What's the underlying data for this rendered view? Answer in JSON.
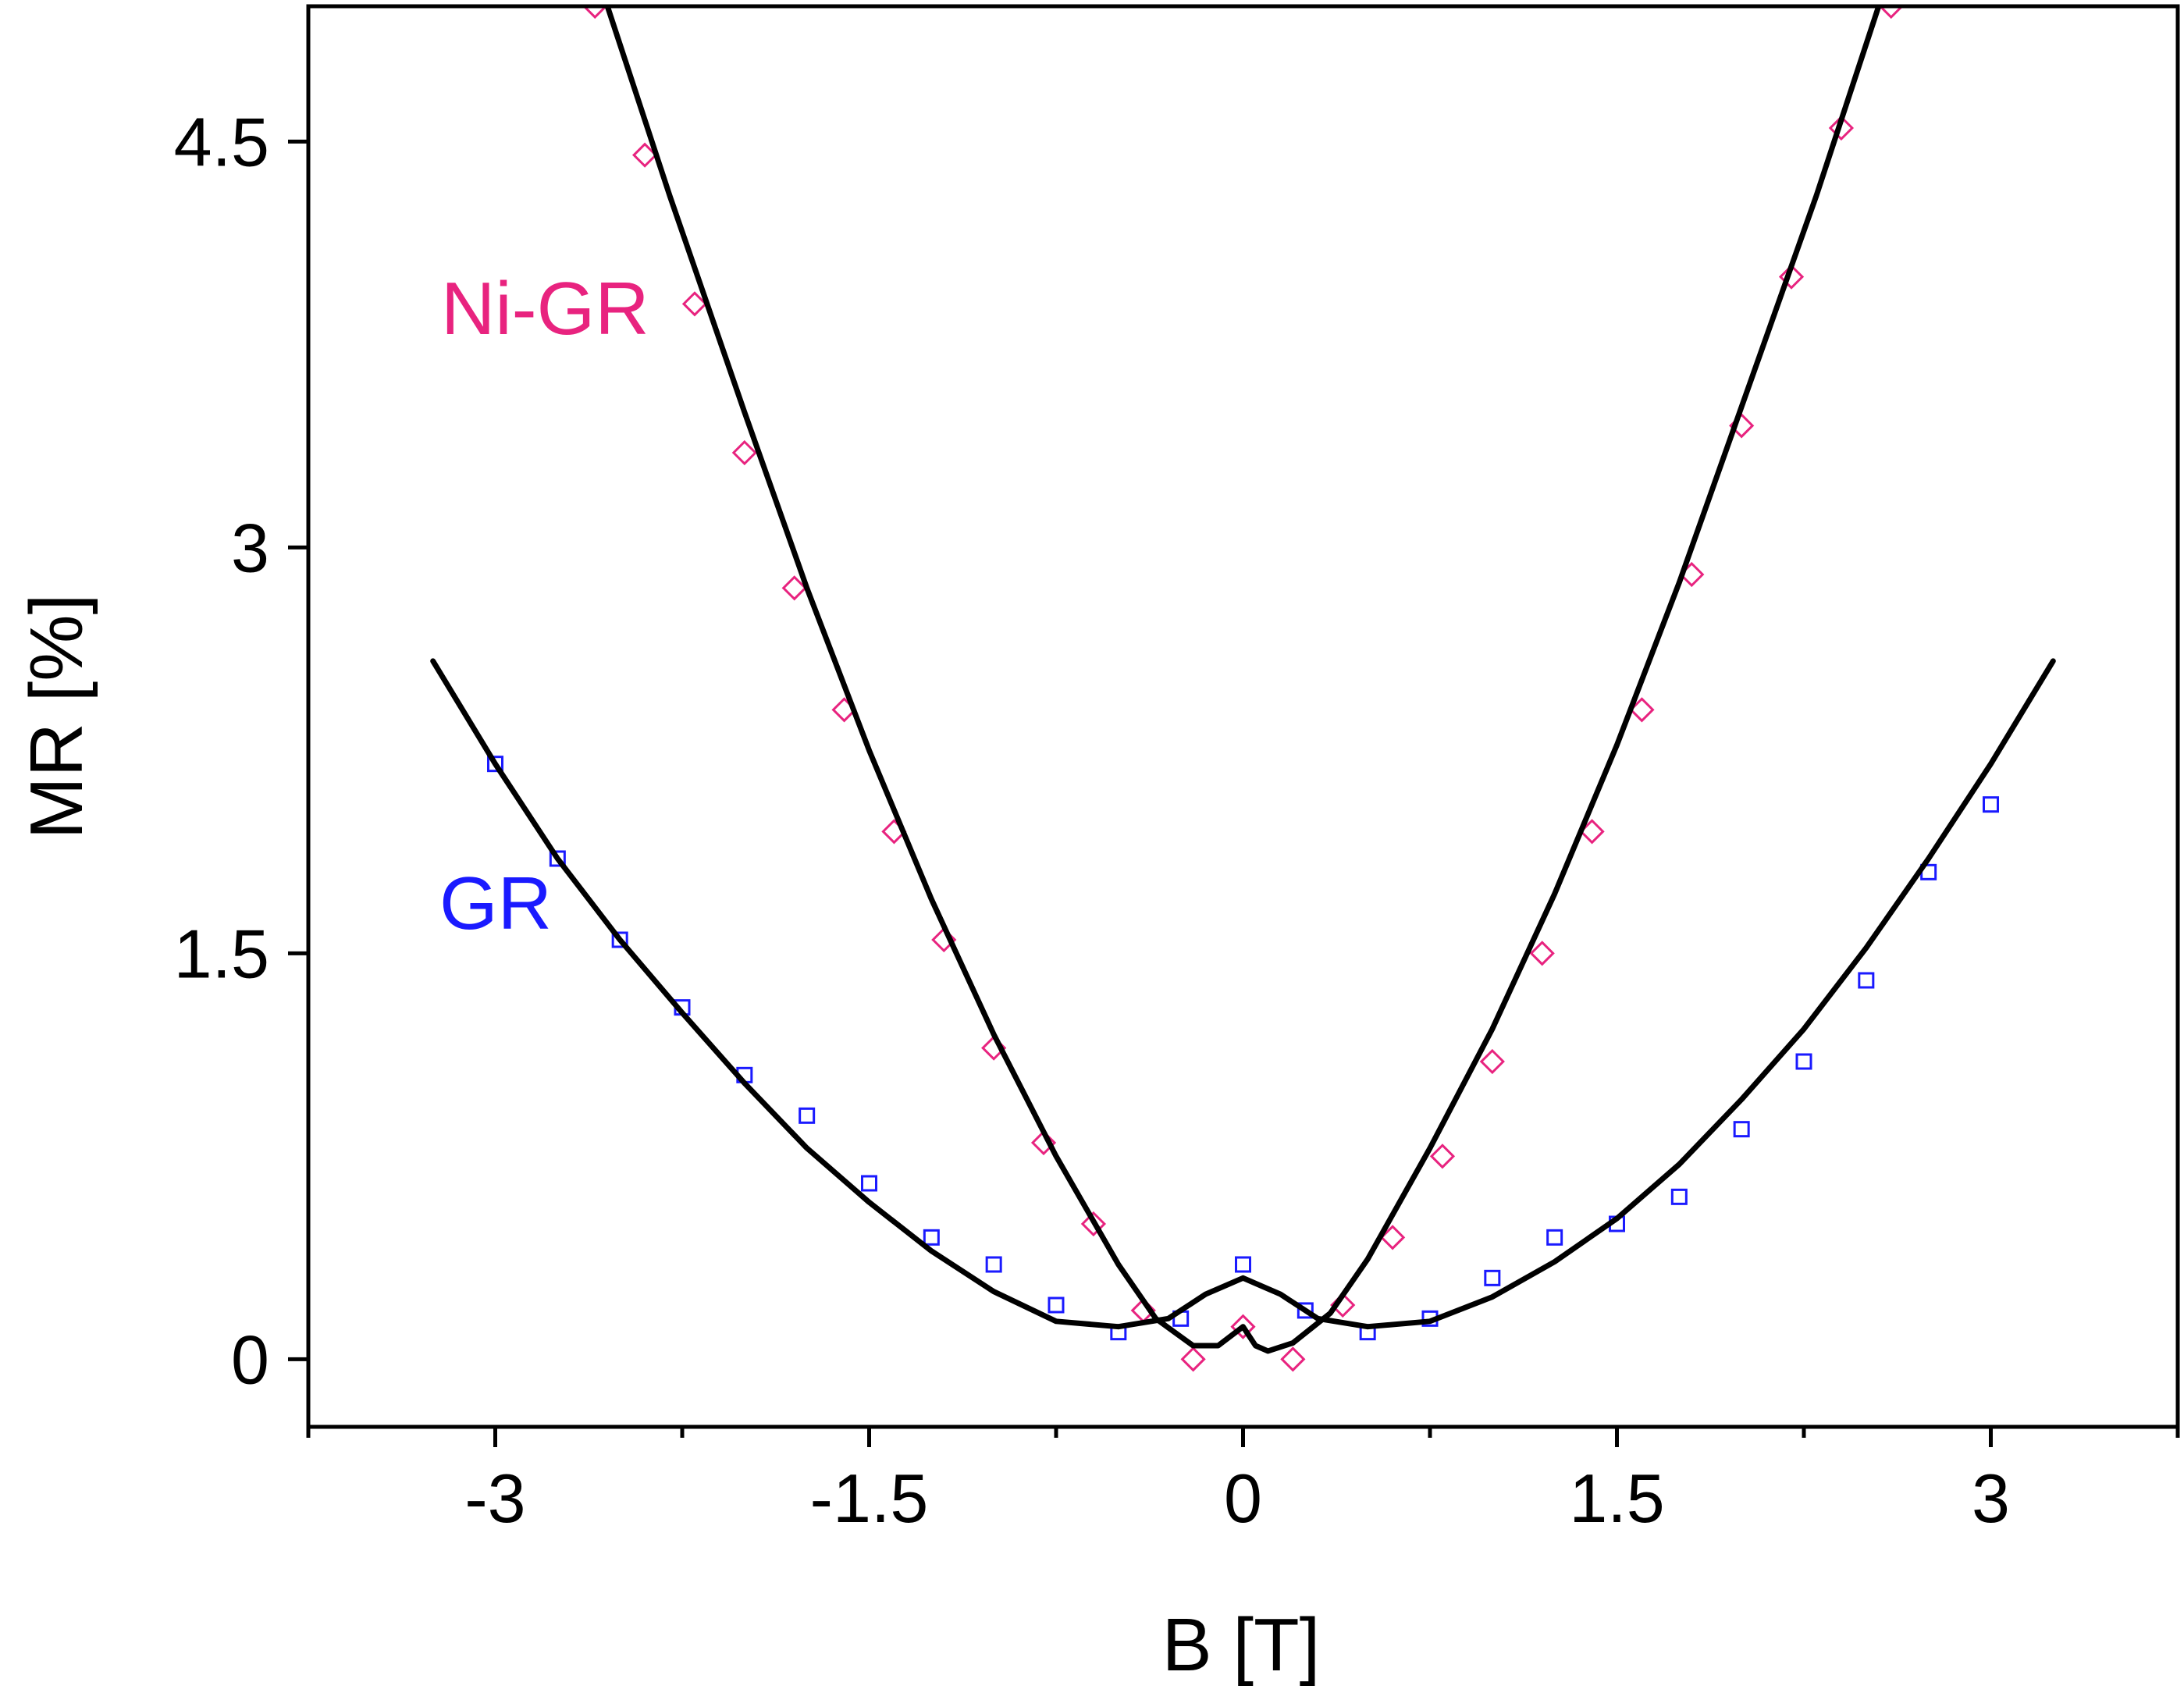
{
  "chart_data": {
    "type": "scatter",
    "xlabel": "B [T]",
    "ylabel": "MR [%]",
    "xlim": [
      -3.75,
      3.75
    ],
    "ylim": [
      -0.25,
      5.0
    ],
    "x_ticks": [
      "-3",
      "-1.5",
      "0",
      "1.5",
      "3"
    ],
    "x_tick_values": [
      -3,
      -1.5,
      0,
      1.5,
      3
    ],
    "y_ticks": [
      "0",
      "1.5",
      "3",
      "4.5"
    ],
    "y_tick_values": [
      0,
      1.5,
      3,
      4.5
    ],
    "grid": false,
    "series": [
      {
        "name": "Ni-GR",
        "marker": "diamond",
        "color": "#e8237f",
        "x": [
          -2.6,
          -2.4,
          -2.2,
          -2.0,
          -1.8,
          -1.6,
          -1.4,
          -1.2,
          -1.0,
          -0.8,
          -0.6,
          -0.4,
          -0.2,
          0.0,
          0.2,
          0.4,
          0.6,
          0.8,
          1.0,
          1.2,
          1.4,
          1.6,
          1.8,
          2.0,
          2.2,
          2.4,
          2.6
        ],
        "y": [
          5.0,
          4.45,
          3.9,
          3.35,
          2.85,
          2.4,
          1.95,
          1.55,
          1.15,
          0.8,
          0.5,
          0.18,
          0.0,
          0.12,
          0.0,
          0.2,
          0.45,
          0.75,
          1.1,
          1.5,
          1.95,
          2.4,
          2.9,
          3.45,
          4.0,
          4.55,
          5.0
        ]
      },
      {
        "name": "GR",
        "marker": "square",
        "color": "#1a1aff",
        "x": [
          -3.0,
          -2.75,
          -2.5,
          -2.25,
          -2.0,
          -1.75,
          -1.5,
          -1.25,
          -1.0,
          -0.75,
          -0.5,
          -0.25,
          0.0,
          0.25,
          0.5,
          0.75,
          1.0,
          1.25,
          1.5,
          1.75,
          2.0,
          2.25,
          2.5,
          2.75,
          3.0
        ],
        "y": [
          2.2,
          1.85,
          1.55,
          1.3,
          1.05,
          0.9,
          0.65,
          0.45,
          0.35,
          0.2,
          0.1,
          0.15,
          0.35,
          0.18,
          0.1,
          0.15,
          0.3,
          0.45,
          0.5,
          0.6,
          0.85,
          1.1,
          1.4,
          1.8,
          2.05
        ]
      }
    ],
    "fits": [
      {
        "for": "Ni-GR",
        "color": "#000000",
        "x": [
          -2.55,
          -2.3,
          -2.0,
          -1.75,
          -1.5,
          -1.25,
          -1.0,
          -0.75,
          -0.5,
          -0.35,
          -0.2,
          -0.1,
          0.0,
          0.05,
          0.1,
          0.2,
          0.35,
          0.5,
          0.75,
          1.0,
          1.25,
          1.5,
          1.75,
          2.0,
          2.3,
          2.55
        ],
        "y": [
          5.0,
          4.3,
          3.5,
          2.85,
          2.25,
          1.7,
          1.2,
          0.75,
          0.35,
          0.15,
          0.05,
          0.05,
          0.12,
          0.05,
          0.03,
          0.06,
          0.17,
          0.37,
          0.78,
          1.22,
          1.72,
          2.27,
          2.87,
          3.52,
          4.3,
          5.0
        ]
      },
      {
        "for": "GR",
        "color": "#000000",
        "x": [
          -3.25,
          -3.0,
          -2.75,
          -2.5,
          -2.25,
          -2.0,
          -1.75,
          -1.5,
          -1.25,
          -1.0,
          -0.75,
          -0.5,
          -0.3,
          -0.15,
          0.0,
          0.15,
          0.3,
          0.5,
          0.75,
          1.0,
          1.25,
          1.5,
          1.75,
          2.0,
          2.25,
          2.5,
          2.75,
          3.0,
          3.25
        ],
        "y": [
          2.58,
          2.2,
          1.85,
          1.55,
          1.28,
          1.02,
          0.78,
          0.58,
          0.4,
          0.25,
          0.14,
          0.12,
          0.15,
          0.24,
          0.3,
          0.24,
          0.15,
          0.12,
          0.14,
          0.23,
          0.36,
          0.52,
          0.72,
          0.96,
          1.22,
          1.52,
          1.85,
          2.2,
          2.58
        ]
      }
    ],
    "annotations": [
      {
        "text": "Ni-GR",
        "color": "#e8237f"
      },
      {
        "text": "GR",
        "color": "#1a1aff"
      }
    ]
  }
}
